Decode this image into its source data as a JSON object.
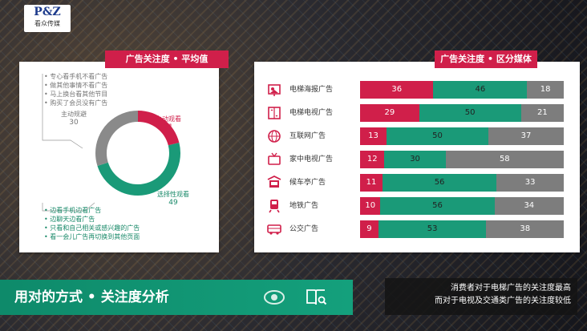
{
  "brand": {
    "logo_text": "P&Z",
    "logo_sub": "看众传媒"
  },
  "left_panel": {
    "title": "广告关注度 • 平均值",
    "top_notes": [
      "专心看手机不看广告",
      "做其他事情不看广告",
      "马上换台看其他节目",
      "购买了会员没有广告"
    ],
    "bottom_notes": [
      "边看手机边看广告",
      "边聊天边看广告",
      "只看和自己相关或感兴趣的广告",
      "看一会儿广告再切换到其他页面"
    ],
    "donut": [
      {
        "label": "主动规避",
        "value": 30,
        "color": "#8a8a8a"
      },
      {
        "label": "主动观看",
        "value": 21,
        "color": "#d01f4a"
      },
      {
        "label": "选择性观看",
        "value": 49,
        "color": "#1a9a78"
      }
    ]
  },
  "right_panel": {
    "title": "广告关注度 • 区分媒体",
    "rows": [
      {
        "name": "电梯海报广告",
        "icon": "poster-icon",
        "values": [
          36,
          46,
          18
        ]
      },
      {
        "name": "电梯电视广告",
        "icon": "elevator-tv-icon",
        "values": [
          29,
          50,
          21
        ]
      },
      {
        "name": "互联网广告",
        "icon": "globe-icon",
        "values": [
          13,
          50,
          37
        ]
      },
      {
        "name": "家中电视广告",
        "icon": "tv-icon",
        "values": [
          12,
          30,
          58
        ]
      },
      {
        "name": "候车亭广告",
        "icon": "bus-shelter-icon",
        "values": [
          11,
          56,
          33
        ]
      },
      {
        "name": "地铁广告",
        "icon": "subway-icon",
        "values": [
          10,
          56,
          34
        ]
      },
      {
        "name": "公交广告",
        "icon": "bus-icon",
        "values": [
          9,
          53,
          38
        ]
      }
    ],
    "colors": [
      "#d01f4a",
      "#1a9a78",
      "#7d7d7d"
    ]
  },
  "bottom": {
    "title": "用对的方式 • 关注度分析",
    "summary_line1": "消费者对于电梯广告的关注度最高",
    "summary_line2": "而对于电视及交通类广告的关注度较低"
  }
}
